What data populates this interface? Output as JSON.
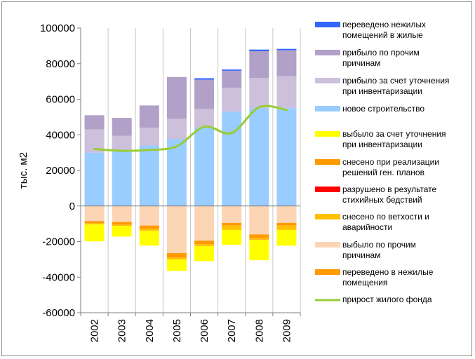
{
  "chart_data": {
    "type": "bar",
    "stacked": true,
    "ylabel": "тыс. м2",
    "ylim": [
      -60000,
      100000
    ],
    "ytick_step": 20000,
    "yticks": [
      "100000",
      "80000",
      "60000",
      "40000",
      "20000",
      "0",
      "-20000",
      "-40000",
      "-60000"
    ],
    "grid": "vertical",
    "legend": "right",
    "categories": [
      "2002",
      "2003",
      "2004",
      "2005",
      "2006",
      "2007",
      "2008",
      "2009"
    ],
    "positive_series": [
      {
        "name": "новое строительство",
        "color": "#99ccff",
        "values": [
          30000,
          30500,
          34000,
          37500,
          44000,
          53000,
          55000,
          55000
        ]
      },
      {
        "name": "прибыло за счет уточнения при инвентаризации",
        "color": "#ccc0da",
        "values": [
          13000,
          9000,
          10000,
          11500,
          10500,
          13500,
          17000,
          18000
        ]
      },
      {
        "name": "прибыло по прочим причинам",
        "color": "#b1a0c7",
        "values": [
          8000,
          10000,
          12500,
          23500,
          16500,
          9500,
          15000,
          14500
        ]
      },
      {
        "name": "переведено нежилых помещений в жилые",
        "color": "#3366ff",
        "values": [
          0,
          0,
          0,
          0,
          800,
          700,
          900,
          800
        ]
      }
    ],
    "negative_series": [
      {
        "name": "выбыло по прочим причинам",
        "color": "#fcd5b4",
        "values": [
          -8500,
          -9000,
          -11000,
          -26500,
          -19500,
          -9500,
          -16000,
          -9500
        ]
      },
      {
        "name": "переведено в нежилые помещения",
        "color": "#ff9900",
        "values": [
          -1200,
          -1500,
          -1800,
          -2500,
          -2000,
          -1500,
          -2000,
          -1500
        ]
      },
      {
        "name": "снесено по ветхости и аварийности",
        "color": "#ffc000",
        "values": [
          -500,
          -500,
          -700,
          -700,
          -700,
          -2000,
          -700,
          -2000
        ]
      },
      {
        "name": "разрушено в результате стихийных бедствий",
        "color": "#ff0000",
        "values": [
          0,
          0,
          0,
          0,
          0,
          0,
          0,
          0
        ]
      },
      {
        "name": "снесено при реализации решений ген. планов",
        "color": "#ff9900",
        "values": [
          -200,
          -200,
          -300,
          -300,
          -300,
          -300,
          -300,
          -300
        ]
      },
      {
        "name": "выбыло за счет уточнения при инвентаризации",
        "color": "#ffff00",
        "values": [
          -9500,
          -6000,
          -8500,
          -6500,
          -8500,
          -8500,
          -11500,
          -9000
        ]
      }
    ],
    "line_series": {
      "name": "прирост жилого фонда",
      "color": "#99cc33",
      "values": [
        32000,
        31000,
        31500,
        33500,
        44500,
        41000,
        55500,
        54000
      ]
    },
    "legend_entries": [
      {
        "text": "переведено нежилых помещений в жилые",
        "lines": [
          "переведено нежилых",
          "помещений в жилые"
        ],
        "color": "#3366ff",
        "kind": "box"
      },
      {
        "text": "прибыло по прочим причинам",
        "lines": [
          "прибыло по прочим",
          "причинам"
        ],
        "color": "#b1a0c7",
        "kind": "box"
      },
      {
        "text": "прибыло за счет уточнения при инвентаризации",
        "lines": [
          "прибыло за счет уточнения",
          "при инвентаризации"
        ],
        "color": "#ccc0da",
        "kind": "box"
      },
      {
        "text": "новое строительство",
        "lines": [
          "новое строительство"
        ],
        "color": "#99ccff",
        "kind": "box"
      },
      {
        "text": "выбыло за счет уточнения при инвентаризации",
        "lines": [
          "выбыло за счет уточнения",
          "при инвентаризации"
        ],
        "color": "#ffff00",
        "kind": "box"
      },
      {
        "text": "снесено при реализации решений ген. планов",
        "lines": [
          "снесено при реализации",
          "решений ген. планов"
        ],
        "color": "#ff9900",
        "kind": "box"
      },
      {
        "text": "разрушено в результате стихийных бедствий",
        "lines": [
          "разрушено в результате",
          "стихийных бедствий"
        ],
        "color": "#ff0000",
        "kind": "box"
      },
      {
        "text": "снесено по ветхости и аварийности",
        "lines": [
          "снесено по ветхости и",
          "аварийности"
        ],
        "color": "#ffc000",
        "kind": "box"
      },
      {
        "text": "выбыло по прочим причинам",
        "lines": [
          "выбыло по прочим",
          "причинам"
        ],
        "color": "#fcd5b4",
        "kind": "box"
      },
      {
        "text": "переведено в нежилые помещения",
        "lines": [
          "переведено в нежилые",
          "помещения"
        ],
        "color": "#ff9900",
        "kind": "box"
      },
      {
        "text": "прирост жилого фонда",
        "lines": [
          "прирост жилого фонда"
        ],
        "color": "#99cc33",
        "kind": "line"
      }
    ]
  }
}
